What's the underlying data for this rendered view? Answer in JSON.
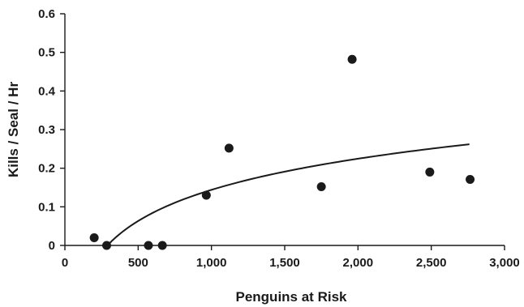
{
  "chart_data": {
    "type": "scatter",
    "title": "",
    "xlabel": "Penguins at Risk",
    "ylabel": "Kills / Seal / Hr",
    "xlim": [
      0,
      3000
    ],
    "ylim": [
      0,
      0.6
    ],
    "x_ticks": [
      0,
      500,
      1000,
      1500,
      2000,
      2500,
      3000
    ],
    "x_tick_labels": [
      "0",
      "500",
      "1,000",
      "1,500",
      "2,000",
      "2,500",
      "3,000"
    ],
    "y_ticks": [
      0,
      0.1,
      0.2,
      0.3,
      0.4,
      0.5,
      0.6
    ],
    "y_tick_labels": [
      "0",
      "0.1",
      "0.2",
      "0.3",
      "0.4",
      "0.5",
      "0.6"
    ],
    "grid": false,
    "legend": "none",
    "series": [
      {
        "points": [
          {
            "x": 200,
            "y": 0.02
          },
          {
            "x": 285,
            "y": 0.0
          },
          {
            "x": 570,
            "y": 0.0
          },
          {
            "x": 665,
            "y": 0.0
          },
          {
            "x": 965,
            "y": 0.13
          },
          {
            "x": 1120,
            "y": 0.252
          },
          {
            "x": 1750,
            "y": 0.152
          },
          {
            "x": 1960,
            "y": 0.482
          },
          {
            "x": 2490,
            "y": 0.19
          },
          {
            "x": 2765,
            "y": 0.171
          }
        ]
      }
    ],
    "trendline": {
      "type": "logarithmic",
      "x_range": [
        290,
        2760
      ],
      "points": [
        {
          "x": 290,
          "y": 0.0
        },
        {
          "x": 500,
          "y": 0.0682
        },
        {
          "x": 1000,
          "y": 0.1602
        },
        {
          "x": 1500,
          "y": 0.2141
        },
        {
          "x": 2000,
          "y": 0.2523
        },
        {
          "x": 2500,
          "y": 0.2819
        },
        {
          "x": 2760,
          "y": 0.2951
        }
      ]
    },
    "colors": {
      "marks": "#1a1a1a",
      "background": "#ffffff"
    }
  }
}
